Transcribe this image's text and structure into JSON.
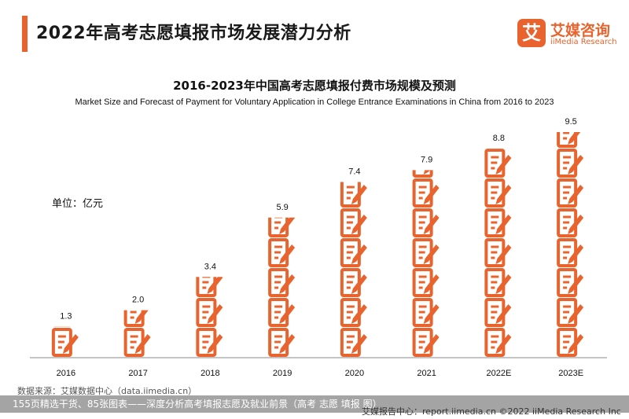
{
  "header": {
    "title": "2022年高考志愿填报市场发展潜力分析",
    "logo_glyph": "艾",
    "logo_cn": "艾媒咨询",
    "logo_en": "iiMedia Research"
  },
  "chart_data": {
    "type": "bar",
    "title": "2016-2023年中国高考志愿填报付费市场规模及预测",
    "subtitle": "Market Size and Forecast of Payment for Voluntary Application in College Entrance Examinations in China from 2016 to 2023",
    "unit_label": "单位：亿元",
    "categories": [
      "2016",
      "2017",
      "2018",
      "2019",
      "2020",
      "2021",
      "2022E",
      "2023E"
    ],
    "values": [
      1.3,
      2.0,
      3.4,
      5.9,
      7.4,
      7.9,
      8.8,
      9.5
    ],
    "value_labels": [
      "1.3",
      "2.0",
      "3.4",
      "5.9",
      "7.4",
      "7.9",
      "8.8",
      "9.5"
    ],
    "ylim": [
      0,
      9.5
    ],
    "grid": false,
    "bar_style": "stacked-form-icons",
    "colors": {
      "icon": "#e8632d",
      "axis": "#888888"
    }
  },
  "footer": {
    "source": "数据来源：艾媒数据中心（data.iimedia.cn）",
    "caption": "155页精选干货、85张图表——深度分析高考填报志愿及就业前景（高考  志愿  填报  图）",
    "right": "艾媒报告中心：report.iimedia.cn   ©2022  iiMedia Research  Inc"
  }
}
